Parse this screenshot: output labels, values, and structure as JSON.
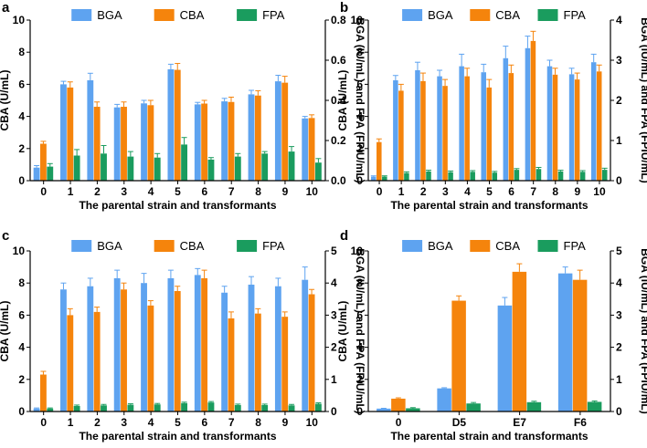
{
  "figure_title": "",
  "colors": {
    "BGA": "#5ea3f0",
    "CBA": "#f5840c",
    "FPA": "#1a9c5e",
    "axis": "#000000",
    "error": "#333333"
  },
  "chart_data": [
    {
      "panel": "a",
      "type": "bar",
      "categories": [
        "0",
        "1",
        "2",
        "3",
        "4",
        "5",
        "6",
        "7",
        "8",
        "9",
        "10"
      ],
      "legend": [
        "BGA",
        "CBA",
        "FPA"
      ],
      "xlabel": "The parental strain and transformants",
      "ylabel": "CBA (U/mL)",
      "y2label": "BGA (IU/mL) and FPA (FPIU/mL)",
      "ylim": [
        0,
        10
      ],
      "y2lim": [
        0,
        0.8
      ],
      "yticks": [
        "0",
        "2",
        "4",
        "6",
        "8",
        "10"
      ],
      "y2ticks": [
        "0.0",
        "0.2",
        "0.4",
        "0.6",
        "0.8"
      ],
      "series": [
        {
          "name": "BGA",
          "axis": "right",
          "values": [
            0.065,
            0.48,
            0.5,
            0.365,
            0.385,
            0.555,
            0.38,
            0.395,
            0.43,
            0.495,
            0.31
          ],
          "errors": [
            0.01,
            0.015,
            0.035,
            0.015,
            0.015,
            0.025,
            0.01,
            0.015,
            0.02,
            0.03,
            0.01
          ]
        },
        {
          "name": "CBA",
          "axis": "left",
          "values": [
            2.3,
            5.8,
            4.6,
            4.6,
            4.7,
            6.9,
            4.8,
            4.9,
            5.3,
            6.1,
            3.9
          ],
          "errors": [
            0.15,
            0.35,
            0.3,
            0.3,
            0.3,
            0.4,
            0.2,
            0.3,
            0.3,
            0.4,
            0.2
          ]
        },
        {
          "name": "FPA",
          "axis": "right",
          "values": [
            0.07,
            0.125,
            0.135,
            0.12,
            0.115,
            0.18,
            0.105,
            0.12,
            0.135,
            0.145,
            0.09
          ],
          "errors": [
            0.015,
            0.03,
            0.04,
            0.025,
            0.02,
            0.035,
            0.01,
            0.015,
            0.01,
            0.025,
            0.02
          ]
        }
      ]
    },
    {
      "panel": "b",
      "type": "bar",
      "categories": [
        "0",
        "1",
        "2",
        "3",
        "4",
        "5",
        "6",
        "7",
        "8",
        "9",
        "10"
      ],
      "legend": [
        "BGA",
        "CBA",
        "FPA"
      ],
      "xlabel": "The parental strain and transformants",
      "ylabel": "CBA (U/mL)",
      "y2label": "BGA (IU/mL) and FPA (FPIU/mL)",
      "ylim": [
        0,
        10
      ],
      "y2lim": [
        0,
        4
      ],
      "yticks": [
        "0",
        "2",
        "4",
        "6",
        "8",
        "10"
      ],
      "y2ticks": [
        "0",
        "1",
        "2",
        "3",
        "4"
      ],
      "series": [
        {
          "name": "BGA",
          "axis": "right",
          "values": [
            0.1,
            2.5,
            2.75,
            2.6,
            2.85,
            2.7,
            3.05,
            3.3,
            2.85,
            2.65,
            2.95
          ],
          "errors": [
            0.02,
            0.12,
            0.2,
            0.15,
            0.3,
            0.2,
            0.3,
            0.3,
            0.15,
            0.15,
            0.2
          ]
        },
        {
          "name": "CBA",
          "axis": "left",
          "values": [
            2.4,
            5.6,
            6.2,
            5.9,
            6.5,
            5.8,
            6.7,
            8.7,
            6.6,
            6.3,
            6.8
          ],
          "errors": [
            0.2,
            0.4,
            0.5,
            0.4,
            0.5,
            0.5,
            0.5,
            0.6,
            0.4,
            0.4,
            0.4
          ]
        },
        {
          "name": "FPA",
          "axis": "right",
          "values": [
            0.1,
            0.19,
            0.23,
            0.21,
            0.22,
            0.2,
            0.27,
            0.29,
            0.23,
            0.22,
            0.27
          ],
          "errors": [
            0.02,
            0.03,
            0.03,
            0.03,
            0.03,
            0.03,
            0.03,
            0.04,
            0.03,
            0.03,
            0.04
          ]
        }
      ]
    },
    {
      "panel": "c",
      "type": "bar",
      "categories": [
        "0",
        "1",
        "2",
        "3",
        "4",
        "5",
        "6",
        "7",
        "8",
        "9",
        "10"
      ],
      "legend": [
        "BGA",
        "CBA",
        "FPA"
      ],
      "xlabel": "The parental strain and transformants",
      "ylabel": "CBA (U/mL)",
      "y2label": "BGA (IU/mL) and FPA (FPIU/mL)",
      "ylim": [
        0,
        10
      ],
      "y2lim": [
        0,
        5
      ],
      "yticks": [
        "0",
        "2",
        "4",
        "6",
        "8",
        "10"
      ],
      "y2ticks": [
        "0",
        "1",
        "2",
        "3",
        "4",
        "5"
      ],
      "series": [
        {
          "name": "BGA",
          "axis": "right",
          "values": [
            0.09,
            3.8,
            3.9,
            4.15,
            4.0,
            4.15,
            4.25,
            3.7,
            3.95,
            3.9,
            4.1
          ],
          "errors": [
            0.02,
            0.2,
            0.25,
            0.25,
            0.3,
            0.25,
            0.2,
            0.2,
            0.25,
            0.25,
            0.4
          ]
        },
        {
          "name": "CBA",
          "axis": "left",
          "values": [
            2.3,
            6.0,
            6.2,
            7.6,
            6.6,
            7.5,
            8.3,
            5.8,
            6.1,
            5.9,
            7.3
          ],
          "errors": [
            0.2,
            0.4,
            0.3,
            0.4,
            0.3,
            0.3,
            0.5,
            0.4,
            0.3,
            0.3,
            0.3
          ]
        },
        {
          "name": "FPA",
          "axis": "right",
          "values": [
            0.09,
            0.17,
            0.19,
            0.21,
            0.22,
            0.26,
            0.28,
            0.2,
            0.2,
            0.19,
            0.24
          ],
          "errors": [
            0.02,
            0.03,
            0.03,
            0.03,
            0.03,
            0.03,
            0.03,
            0.03,
            0.03,
            0.03,
            0.03
          ]
        }
      ]
    },
    {
      "panel": "d",
      "type": "bar",
      "categories": [
        "0",
        "D5",
        "E7",
        "F6"
      ],
      "legend": [
        "BGA",
        "CBA",
        "FPA"
      ],
      "xlabel": "The parental strain and transformants",
      "ylabel": "CBA (U/mL)",
      "y2label": "BGA (IU/mL) and FPA (FPIU/mL)",
      "ylim": [
        0,
        10
      ],
      "y2lim": [
        0,
        5
      ],
      "yticks": [
        "0",
        "2",
        "4",
        "6",
        "8",
        "10"
      ],
      "y2ticks": [
        "0",
        "1",
        "2",
        "3",
        "4",
        "5"
      ],
      "series": [
        {
          "name": "BGA",
          "axis": "right",
          "values": [
            0.09,
            0.72,
            3.3,
            4.3
          ],
          "errors": [
            0.01,
            0.02,
            0.25,
            0.2
          ]
        },
        {
          "name": "CBA",
          "axis": "left",
          "values": [
            0.8,
            6.9,
            8.7,
            8.2
          ],
          "errors": [
            0.05,
            0.3,
            0.5,
            0.6
          ]
        },
        {
          "name": "FPA",
          "axis": "right",
          "values": [
            0.1,
            0.25,
            0.29,
            0.3
          ],
          "errors": [
            0.02,
            0.03,
            0.03,
            0.03
          ]
        }
      ]
    }
  ]
}
